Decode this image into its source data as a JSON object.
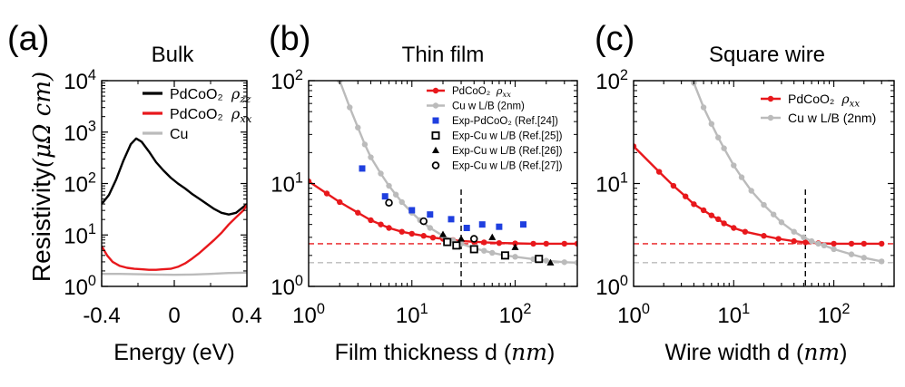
{
  "figure": {
    "ylabel_text": "Resistivity",
    "ylabel_unit": "(μΩ cm)"
  },
  "chart_data": [
    {
      "panel": "(a)",
      "title": "Bulk",
      "type": "line",
      "xlabel": "Energy (eV)",
      "ylabel": "Resistivity(μΩ cm)",
      "xlim": [
        -0.4,
        0.4
      ],
      "ylim": [
        1,
        10000
      ],
      "yscale": "log",
      "xticks": [
        "-0.4",
        "0",
        "0.4"
      ],
      "yticks": [
        "10⁰",
        "10¹",
        "10²",
        "10³",
        "10⁴"
      ],
      "legend_position": "upper-right",
      "series": [
        {
          "name": "PdCoO₂ ρzz",
          "color": "#000000",
          "x": [
            -0.4,
            -0.36,
            -0.32,
            -0.28,
            -0.24,
            -0.21,
            -0.18,
            -0.14,
            -0.1,
            -0.06,
            -0.02,
            0.02,
            0.06,
            0.1,
            0.14,
            0.18,
            0.22,
            0.26,
            0.3,
            0.34,
            0.38,
            0.4
          ],
          "y": [
            40,
            60,
            120,
            280,
            580,
            750,
            650,
            420,
            260,
            180,
            130,
            100,
            80,
            62,
            50,
            40,
            32,
            27,
            25,
            27,
            35,
            40
          ]
        },
        {
          "name": "PdCoO₂ ρxx",
          "color": "#e8181c",
          "x": [
            -0.4,
            -0.37,
            -0.34,
            -0.3,
            -0.26,
            -0.22,
            -0.18,
            -0.14,
            -0.1,
            -0.06,
            -0.02,
            0.02,
            0.06,
            0.1,
            0.14,
            0.18,
            0.22,
            0.26,
            0.3,
            0.34,
            0.38,
            0.4
          ],
          "y": [
            6.0,
            4.0,
            3.0,
            2.5,
            2.3,
            2.2,
            2.15,
            2.1,
            2.1,
            2.15,
            2.2,
            2.4,
            2.8,
            3.5,
            4.5,
            6.0,
            8.0,
            11,
            16,
            22,
            30,
            38
          ]
        },
        {
          "name": "Cu",
          "color": "#bbbbbb",
          "x": [
            -0.4,
            -0.3,
            -0.2,
            -0.1,
            0,
            0.1,
            0.2,
            0.3,
            0.4
          ],
          "y": [
            1.75,
            1.75,
            1.72,
            1.7,
            1.68,
            1.7,
            1.75,
            1.82,
            1.85
          ]
        }
      ]
    },
    {
      "panel": "(b)",
      "title": "Thin film",
      "type": "line",
      "xlabel": "Film thickness d (nm)",
      "xlim": [
        1,
        400
      ],
      "ylim": [
        1,
        100
      ],
      "xscale": "log",
      "yscale": "log",
      "xticks": [
        "10⁰",
        "10¹",
        "10²"
      ],
      "yticks": [
        "10⁰",
        "10¹",
        "10²"
      ],
      "vline_x": 30,
      "hlines": [
        {
          "y": 2.6,
          "color": "#e8181c"
        },
        {
          "y": 1.7,
          "color": "#bbbbbb"
        }
      ],
      "legend_position": "upper-right",
      "series": [
        {
          "name": "PdCoO₂ ρxx",
          "color": "#e8181c",
          "marker": "circle",
          "x": [
            1,
            1.5,
            2,
            3,
            4,
            5,
            6,
            8,
            10,
            13,
            16,
            20,
            25,
            30,
            40,
            50,
            70,
            100,
            150,
            200,
            300,
            400
          ],
          "y": [
            10.5,
            8.0,
            6.6,
            5.2,
            4.4,
            4.0,
            3.7,
            3.4,
            3.25,
            3.1,
            2.98,
            2.9,
            2.82,
            2.76,
            2.72,
            2.68,
            2.64,
            2.62,
            2.6,
            2.6,
            2.6,
            2.6
          ]
        },
        {
          "name": "Cu w L/B (2nm)",
          "color": "#bbbbbb",
          "marker": "circle",
          "x": [
            2,
            2.5,
            3,
            3.5,
            4,
            5,
            6,
            7,
            8,
            10,
            12,
            15,
            20,
            25,
            30,
            40,
            50,
            60,
            80,
            100,
            150,
            200,
            300,
            400
          ],
          "y": [
            100,
            55,
            35,
            24,
            18,
            12.5,
            9.5,
            7.8,
            6.6,
            5.2,
            4.4,
            3.7,
            3.1,
            2.8,
            2.6,
            2.35,
            2.22,
            2.12,
            2.0,
            1.94,
            1.84,
            1.78,
            1.72,
            1.7
          ]
        },
        {
          "name": "Exp-PdCoO₂ (Ref.[24])",
          "color": "#1f3fdf",
          "marker": "square",
          "x": [
            3.3,
            5.5,
            10,
            15,
            24,
            34,
            48,
            70,
            120
          ],
          "y": [
            14,
            7.5,
            5.5,
            5.0,
            4.5,
            3.7,
            4.0,
            3.8,
            4.0
          ]
        },
        {
          "name": "Exp-Cu w L/B (Ref.[25])",
          "color": "#000000",
          "marker": "open-square",
          "x": [
            22,
            27,
            40,
            80,
            170
          ],
          "y": [
            2.7,
            2.5,
            2.3,
            2.0,
            1.85
          ]
        },
        {
          "name": "Exp-Cu w L/B (Ref.[26])",
          "color": "#000000",
          "marker": "triangle",
          "x": [
            20,
            30,
            60,
            100,
            220
          ],
          "y": [
            3.2,
            2.9,
            3.0,
            2.4,
            1.7
          ]
        },
        {
          "name": "Exp-Cu w L/B (Ref.[27])",
          "color": "#000000",
          "marker": "open-circle",
          "x": [
            6,
            13,
            40
          ],
          "y": [
            6.5,
            4.3,
            2.9
          ]
        }
      ]
    },
    {
      "panel": "(c)",
      "title": "Square wire",
      "type": "line",
      "xlabel": "Wire width d (nm)",
      "xlim": [
        1,
        400
      ],
      "ylim": [
        1,
        100
      ],
      "xscale": "log",
      "yscale": "log",
      "xticks": [
        "10⁰",
        "10¹",
        "10²"
      ],
      "yticks": [
        "10⁰",
        "10¹",
        "10²"
      ],
      "vline_x": 52,
      "hlines": [
        {
          "y": 2.6,
          "color": "#e8181c"
        },
        {
          "y": 1.7,
          "color": "#bbbbbb"
        }
      ],
      "legend_position": "upper-right",
      "series": [
        {
          "name": "PdCoO₂ ρxx",
          "color": "#e8181c",
          "marker": "circle",
          "x": [
            1,
            1.8,
            2.5,
            3.3,
            4,
            5,
            6,
            7,
            8,
            10,
            13,
            20,
            28,
            40,
            52,
            70,
            100,
            150,
            200,
            300
          ],
          "y": [
            23,
            13,
            9.5,
            7.5,
            6.3,
            5.5,
            4.9,
            4.5,
            4.1,
            3.7,
            3.4,
            3.1,
            2.9,
            2.75,
            2.68,
            2.63,
            2.6,
            2.6,
            2.6,
            2.6
          ]
        },
        {
          "name": "Cu w L/B (2nm)",
          "color": "#bbbbbb",
          "marker": "circle",
          "x": [
            4,
            5,
            6,
            7,
            8,
            10,
            12,
            15,
            20,
            25,
            30,
            40,
            50,
            60,
            70,
            80,
            100,
            150,
            200,
            300
          ],
          "y": [
            95,
            55,
            38,
            28,
            22,
            15,
            11.5,
            8.5,
            6.2,
            5.0,
            4.2,
            3.4,
            3.0,
            2.75,
            2.6,
            2.5,
            2.3,
            2.05,
            1.9,
            1.75
          ]
        }
      ]
    }
  ]
}
